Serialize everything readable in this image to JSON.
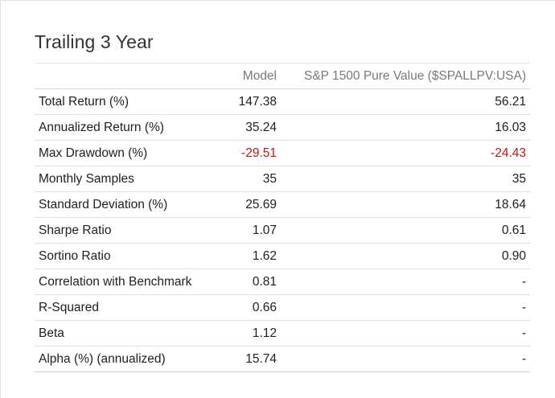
{
  "title": "Trailing 3 Year",
  "columns": {
    "label": "",
    "model": "Model",
    "benchmark": "S&P 1500 Pure Value ($SPALLPV:USA)"
  },
  "colors": {
    "negative": "#c0161b",
    "text": "#1f1f1f",
    "header": "#7a7a7a"
  },
  "rows": [
    {
      "label": "Total Return (%)",
      "model": "147.38",
      "benchmark": "56.21",
      "negative": false
    },
    {
      "label": "Annualized Return (%)",
      "model": "35.24",
      "benchmark": "16.03",
      "negative": false
    },
    {
      "label": "Max Drawdown (%)",
      "model": "-29.51",
      "benchmark": "-24.43",
      "negative": true
    },
    {
      "label": "Monthly Samples",
      "model": "35",
      "benchmark": "35",
      "negative": false
    },
    {
      "label": "Standard Deviation (%)",
      "model": "25.69",
      "benchmark": "18.64",
      "negative": false
    },
    {
      "label": "Sharpe Ratio",
      "model": "1.07",
      "benchmark": "0.61",
      "negative": false
    },
    {
      "label": "Sortino Ratio",
      "model": "1.62",
      "benchmark": "0.90",
      "negative": false
    },
    {
      "label": "Correlation with Benchmark",
      "model": "0.81",
      "benchmark": "-",
      "negative": false
    },
    {
      "label": "R-Squared",
      "model": "0.66",
      "benchmark": "-",
      "negative": false
    },
    {
      "label": "Beta",
      "model": "1.12",
      "benchmark": "-",
      "negative": false
    },
    {
      "label": "Alpha (%) (annualized)",
      "model": "15.74",
      "benchmark": "-",
      "negative": false
    }
  ]
}
